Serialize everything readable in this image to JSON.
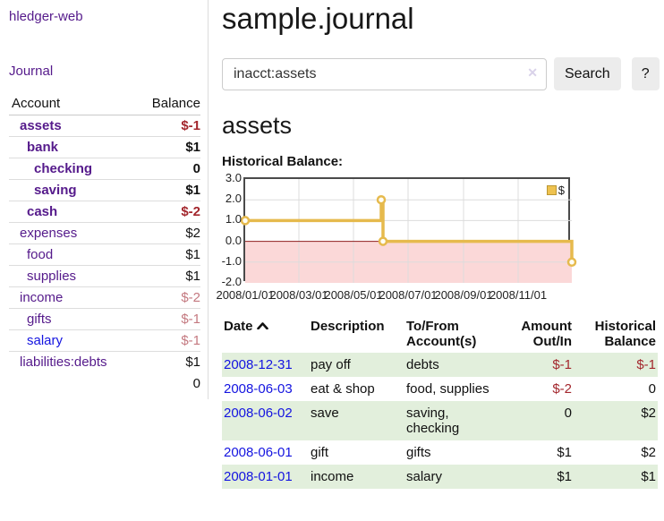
{
  "colors": {
    "accent_purple": "#551a8b",
    "link_blue": "#1414e0",
    "negative_strong": "#a3272d",
    "negative_soft": "#c47980",
    "row_stripe_green": "#e2efdc",
    "chart_line_gold": "#e6ba4d",
    "chart_negative_fill": "#fbd8d8",
    "chart_zero_line": "#8e1f1f"
  },
  "sidebar": {
    "app_title": "hledger-web",
    "journal_label": "Journal",
    "accounts_table": {
      "headers": {
        "account": "Account",
        "balance": "Balance"
      },
      "rows": [
        {
          "name": "assets",
          "balance": "$-1",
          "level": 1,
          "bold": true,
          "name_color": "purple",
          "balance_color": "negstrong"
        },
        {
          "name": "bank",
          "balance": "$1",
          "level": 2,
          "bold": true,
          "name_color": "purple",
          "balance_color": "normal"
        },
        {
          "name": "checking",
          "balance": "0",
          "level": 3,
          "bold": true,
          "name_color": "purple",
          "balance_color": "normal"
        },
        {
          "name": "saving",
          "balance": "$1",
          "level": 3,
          "bold": true,
          "name_color": "purple",
          "balance_color": "normal"
        },
        {
          "name": "cash",
          "balance": "$-2",
          "level": 2,
          "bold": true,
          "name_color": "purple",
          "balance_color": "negstrong"
        },
        {
          "name": "expenses",
          "balance": "$2",
          "level": 1,
          "bold": false,
          "name_color": "purple",
          "balance_color": "normal"
        },
        {
          "name": "food",
          "balance": "$1",
          "level": 2,
          "bold": false,
          "name_color": "purple",
          "balance_color": "normal"
        },
        {
          "name": "supplies",
          "balance": "$1",
          "level": 2,
          "bold": false,
          "name_color": "purple",
          "balance_color": "normal"
        },
        {
          "name": "income",
          "balance": "$-2",
          "level": 1,
          "bold": false,
          "name_color": "purple",
          "balance_color": "negsoft"
        },
        {
          "name": "gifts",
          "balance": "$-1",
          "level": 2,
          "bold": false,
          "name_color": "purple",
          "balance_color": "negsoft"
        },
        {
          "name": "salary",
          "balance": "$-1",
          "level": 2,
          "bold": false,
          "name_color": "blue",
          "balance_color": "negsoft"
        },
        {
          "name": "liabilities:debts",
          "balance": "$1",
          "level": 1,
          "bold": false,
          "name_color": "purple",
          "balance_color": "normal"
        }
      ],
      "total": "0"
    }
  },
  "main": {
    "title": "sample.journal",
    "search": {
      "value": "inacct:assets",
      "clear_glyph": "✕",
      "search_button": "Search",
      "help_button": "?"
    },
    "account_heading": "assets",
    "chart_heading": "Historical Balance:",
    "register_table": {
      "headers": {
        "date": "Date",
        "description": "Description",
        "accounts": "To/From Account(s)",
        "amount": "Amount Out/In",
        "balance": "Historical Balance"
      },
      "rows": [
        {
          "date": "2008-12-31",
          "description": "pay off",
          "accounts": "debts",
          "amount": "$-1",
          "amount_negative": true,
          "balance": "$-1",
          "balance_negative": true
        },
        {
          "date": "2008-06-03",
          "description": "eat & shop",
          "accounts": "food, supplies",
          "amount": "$-2",
          "amount_negative": true,
          "balance": "0",
          "balance_negative": false
        },
        {
          "date": "2008-06-02",
          "description": "save",
          "accounts": "saving, checking",
          "amount": "0",
          "amount_negative": false,
          "balance": "$2",
          "balance_negative": false
        },
        {
          "date": "2008-06-01",
          "description": "gift",
          "accounts": "gifts",
          "amount": "$1",
          "amount_negative": false,
          "balance": "$2",
          "balance_negative": false
        },
        {
          "date": "2008-01-01",
          "description": "income",
          "accounts": "salary",
          "amount": "$1",
          "amount_negative": false,
          "balance": "$1",
          "balance_negative": false
        }
      ]
    }
  },
  "chart_data": {
    "type": "line",
    "title": "Historical Balance",
    "step": true,
    "x_start": "2008-01-01",
    "x_range_days": 365,
    "ylim": [
      -2,
      3
    ],
    "y_ticks": [
      "3.0",
      "2.0",
      "1.0",
      "0.0",
      "-1.0",
      "-2.0"
    ],
    "x_ticks": [
      "2008/01/01",
      "2008/03/01",
      "2008/05/01",
      "2008/07/01",
      "2008/09/01",
      "2008/11/01"
    ],
    "grid": true,
    "legend": {
      "label": "$",
      "position": "top-right"
    },
    "series": [
      {
        "name": "$",
        "color": "#e6ba4d",
        "points": [
          [
            "2008-01-01",
            1
          ],
          [
            "2008-06-01",
            2
          ],
          [
            "2008-06-03",
            0
          ],
          [
            "2008-12-31",
            -1
          ]
        ]
      }
    ],
    "negative_region_color": "#fbd8d8",
    "zero_line_color": "#8e1f1f"
  }
}
